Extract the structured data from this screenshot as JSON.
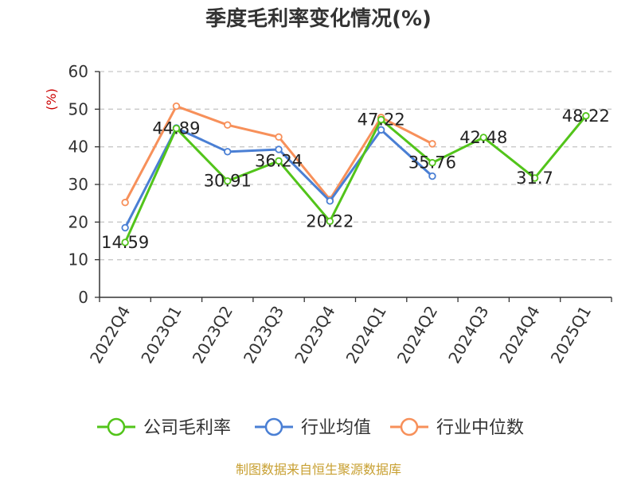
{
  "chart_data": {
    "type": "line",
    "title": "季度毛利率变化情况(%)",
    "ylabel": "(%)",
    "categories": [
      "2022Q4",
      "2023Q1",
      "2023Q2",
      "2023Q3",
      "2023Q4",
      "2024Q1",
      "2024Q2",
      "2024Q3",
      "2024Q4",
      "2025Q1"
    ],
    "ylim": [
      0,
      60
    ],
    "yticks": [
      0,
      10,
      20,
      30,
      40,
      50,
      60
    ],
    "grid": true,
    "legend_position": "bottom",
    "series": [
      {
        "name": "公司毛利率",
        "color": "#52c41a",
        "values": [
          14.59,
          44.89,
          30.91,
          36.24,
          20.22,
          47.22,
          35.76,
          42.48,
          31.7,
          48.22
        ],
        "labels": [
          "14.59",
          "44.89",
          "30.91",
          "36.24",
          "20.22",
          "47.22",
          "35.76",
          "42.48",
          "31.7",
          "48.22"
        ]
      },
      {
        "name": "行业均值",
        "color": "#4a7fd4",
        "values": [
          18.5,
          45.0,
          38.7,
          39.3,
          25.6,
          44.5,
          32.2,
          null,
          null,
          null
        ]
      },
      {
        "name": "行业中位数",
        "color": "#f7905a",
        "values": [
          25.2,
          50.8,
          45.8,
          42.6,
          26.0,
          47.8,
          40.8,
          null,
          null,
          null
        ]
      }
    ]
  },
  "source": "制图数据来自恒生聚源数据库"
}
